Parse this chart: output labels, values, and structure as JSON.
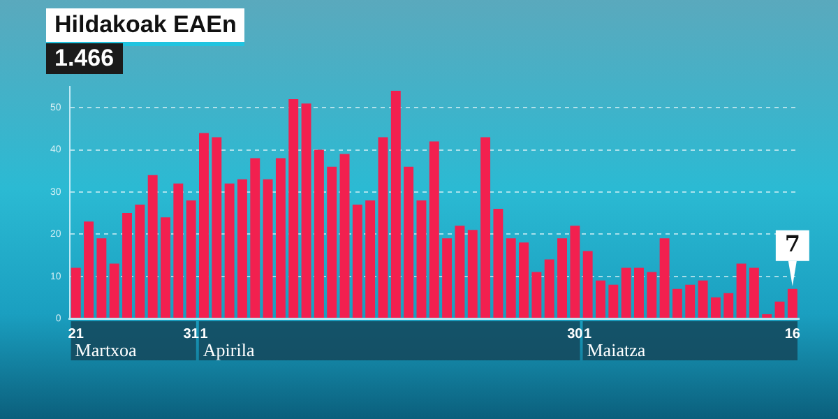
{
  "chart_data": {
    "type": "bar",
    "title": "Hildakoak EAEn",
    "subtitle": "1.466",
    "categories": [
      "21",
      null,
      null,
      null,
      null,
      null,
      null,
      null,
      null,
      "31",
      "1",
      null,
      null,
      null,
      null,
      null,
      null,
      null,
      null,
      null,
      null,
      null,
      null,
      null,
      null,
      null,
      null,
      null,
      null,
      null,
      null,
      null,
      null,
      null,
      null,
      null,
      null,
      null,
      null,
      "30",
      "1",
      null,
      null,
      null,
      null,
      null,
      null,
      null,
      null,
      null,
      null,
      null,
      null,
      null,
      null,
      null,
      "16"
    ],
    "values": [
      12,
      23,
      19,
      13,
      25,
      27,
      34,
      24,
      32,
      28,
      44,
      43,
      32,
      33,
      38,
      33,
      38,
      52,
      51,
      40,
      36,
      39,
      27,
      28,
      43,
      54,
      36,
      28,
      42,
      19,
      22,
      21,
      43,
      26,
      19,
      18,
      11,
      14,
      19,
      22,
      16,
      9,
      8,
      12,
      12,
      11,
      19,
      7,
      8,
      9,
      5,
      6,
      13,
      12,
      1,
      4,
      7
    ],
    "value_labels": [
      null,
      null,
      null,
      null,
      null,
      null,
      null,
      null,
      null,
      null,
      null,
      null,
      null,
      null,
      null,
      null,
      null,
      null,
      null,
      null,
      null,
      null,
      null,
      null,
      null,
      null,
      null,
      null,
      null,
      null,
      null,
      null,
      null,
      null,
      null,
      null,
      null,
      null,
      null,
      null,
      null,
      null,
      null,
      null,
      null,
      null,
      null,
      null,
      null,
      null,
      null,
      null,
      null,
      null,
      null,
      null,
      "7"
    ],
    "color": "#f2204f",
    "ylim": [
      0,
      55
    ],
    "yticks": [
      0,
      10,
      20,
      30,
      40,
      50
    ],
    "grid": "y",
    "line_style": "dashed",
    "annotations": [
      "Martxoa",
      "Apirila",
      "Maiatza"
    ]
  }
}
